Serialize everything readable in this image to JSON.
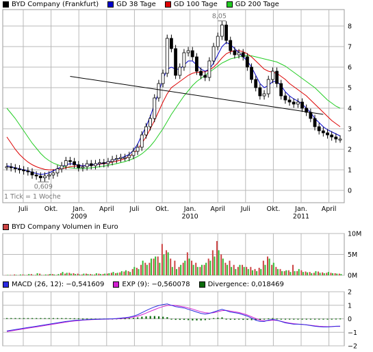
{
  "colors": {
    "price": "#000000",
    "gd38": "#0000cc",
    "gd100": "#dd0000",
    "gd200": "#22cc22",
    "grid": "#b8b8b8",
    "vol_up": "#33bb33",
    "vol_down": "#cc4444",
    "macd": "#2a2ae0",
    "exp": "#d020d0",
    "divergence": "#0a6a0a"
  },
  "price_panel": {
    "legend": [
      {
        "label": "BYD Company (Frankfurt)",
        "color": "#000000"
      },
      {
        "label": "GD 38 Tage",
        "color": "#0000cc"
      },
      {
        "label": "GD 100 Tage",
        "color": "#dd0000"
      },
      {
        "label": "GD 200 Tage",
        "color": "#22cc22"
      }
    ],
    "footnote": "1 Tick = 1 Woche",
    "high_label": "8,05",
    "low_label": "0,609"
  },
  "volume_panel": {
    "legend": [
      {
        "label": "BYD Company Volumen in Euro",
        "color": "#cc4444"
      }
    ]
  },
  "macd_panel": {
    "legend": [
      {
        "label": "MACD (26, 12): −0,541609",
        "color": "#2a2ae0"
      },
      {
        "label": "EXP (9): −0,560078",
        "color": "#d020d0"
      },
      {
        "label": "Divergence: 0,018469",
        "color": "#0a6a0a"
      }
    ]
  },
  "chart_data": [
    {
      "type": "line",
      "title": "BYD Company (Frankfurt)",
      "x_ticks": [
        "Juli",
        "Okt.",
        "Jan.",
        "April",
        "Juli",
        "Okt.",
        "Jan.",
        "April",
        "Juli",
        "Okt.",
        "Jan.",
        "April"
      ],
      "x_year_labels": [
        {
          "tick": "Jan.",
          "year": "2009"
        },
        {
          "tick": "Jan.",
          "year": "2010"
        },
        {
          "tick": "Jan.",
          "year": "2011"
        }
      ],
      "y_ticks": [
        "0",
        "1",
        "2",
        "3",
        "4",
        "5",
        "6",
        "7",
        "8"
      ],
      "ylim": [
        -0.6,
        8.8
      ],
      "grid": true,
      "series": [
        {
          "name": "BYD Company (Frankfurt)",
          "values": [
            1.15,
            1.1,
            1.05,
            1.0,
            0.95,
            0.9,
            0.75,
            0.7,
            0.61,
            0.7,
            0.75,
            0.85,
            1.05,
            1.2,
            1.45,
            1.4,
            1.25,
            1.1,
            1.15,
            1.3,
            1.2,
            1.3,
            1.35,
            1.3,
            1.4,
            1.5,
            1.55,
            1.6,
            1.6,
            1.7,
            1.9,
            2.1,
            2.7,
            3.1,
            3.5,
            4.5,
            5.2,
            5.7,
            7.4,
            6.9,
            5.6,
            6.0,
            6.7,
            6.8,
            6.5,
            5.8,
            5.6,
            5.5,
            6.3,
            7.0,
            7.5,
            8.05,
            7.3,
            6.8,
            6.6,
            6.7,
            6.5,
            6.0,
            5.4,
            5.0,
            4.6,
            4.7,
            5.4,
            5.8,
            5.2,
            4.6,
            4.4,
            4.3,
            4.2,
            4.3,
            4.0,
            3.8,
            3.5,
            3.1,
            2.9,
            2.8,
            2.7,
            2.6,
            2.5,
            2.5
          ]
        },
        {
          "name": "GD 38 Tage",
          "values": [
            1.2,
            1.15,
            1.1,
            1.05,
            1.0,
            0.95,
            0.88,
            0.82,
            0.78,
            0.8,
            0.85,
            0.95,
            1.05,
            1.15,
            1.25,
            1.3,
            1.28,
            1.22,
            1.2,
            1.22,
            1.24,
            1.26,
            1.3,
            1.33,
            1.38,
            1.45,
            1.52,
            1.58,
            1.65,
            1.75,
            1.95,
            2.25,
            2.7,
            3.1,
            3.6,
            4.2,
            4.8,
            5.4,
            5.9,
            6.0,
            5.9,
            5.9,
            6.1,
            6.3,
            6.3,
            6.1,
            5.9,
            5.8,
            5.9,
            6.2,
            6.6,
            7.0,
            7.2,
            7.1,
            6.9,
            6.7,
            6.5,
            6.3,
            6.0,
            5.6,
            5.2,
            5.0,
            5.1,
            5.3,
            5.3,
            5.1,
            4.8,
            4.6,
            4.45,
            4.35,
            4.2,
            4.0,
            3.8,
            3.5,
            3.3,
            3.1,
            2.95,
            2.85,
            2.75,
            2.65
          ]
        },
        {
          "name": "GD 100 Tage",
          "values": [
            2.6,
            2.3,
            2.0,
            1.75,
            1.55,
            1.38,
            1.25,
            1.15,
            1.08,
            1.02,
            1.0,
            1.0,
            1.02,
            1.05,
            1.1,
            1.15,
            1.18,
            1.2,
            1.21,
            1.22,
            1.23,
            1.25,
            1.28,
            1.3,
            1.34,
            1.38,
            1.42,
            1.48,
            1.55,
            1.65,
            1.8,
            2.0,
            2.3,
            2.6,
            3.0,
            3.4,
            3.85,
            4.3,
            4.7,
            5.0,
            5.15,
            5.3,
            5.45,
            5.6,
            5.7,
            5.75,
            5.75,
            5.78,
            5.85,
            6.0,
            6.2,
            6.45,
            6.65,
            6.75,
            6.8,
            6.8,
            6.75,
            6.65,
            6.5,
            6.3,
            6.1,
            5.9,
            5.8,
            5.75,
            5.7,
            5.55,
            5.4,
            5.2,
            5.05,
            4.9,
            4.75,
            4.6,
            4.4,
            4.2,
            4.0,
            3.8,
            3.6,
            3.4,
            3.25,
            3.1
          ]
        },
        {
          "name": "GD 200 Tage",
          "values": [
            4.0,
            3.75,
            3.5,
            3.2,
            2.9,
            2.6,
            2.3,
            2.05,
            1.8,
            1.6,
            1.45,
            1.33,
            1.25,
            1.18,
            1.13,
            1.1,
            1.08,
            1.07,
            1.07,
            1.08,
            1.1,
            1.12,
            1.15,
            1.18,
            1.22,
            1.26,
            1.3,
            1.35,
            1.4,
            1.47,
            1.55,
            1.65,
            1.78,
            1.95,
            2.15,
            2.4,
            2.7,
            3.0,
            3.35,
            3.7,
            4.0,
            4.3,
            4.6,
            4.85,
            5.1,
            5.3,
            5.45,
            5.6,
            5.75,
            5.9,
            6.05,
            6.2,
            6.3,
            6.4,
            6.45,
            6.5,
            6.55,
            6.55,
            6.55,
            6.5,
            6.45,
            6.4,
            6.35,
            6.3,
            6.25,
            6.15,
            6.05,
            5.9,
            5.75,
            5.6,
            5.45,
            5.3,
            5.15,
            5.0,
            4.8,
            4.6,
            4.4,
            4.25,
            4.1,
            4.0
          ]
        }
      ],
      "trendline": {
        "from": [
          15,
          5.55
        ],
        "to": [
          75,
          3.7
        ]
      },
      "annotations": [
        {
          "text": "8,05",
          "at_index": 51
        },
        {
          "text": "0,609",
          "at_index": 8
        }
      ]
    },
    {
      "type": "bar",
      "title": "BYD Company Volumen in Euro",
      "y_ticks": [
        "0M",
        "5M",
        "10M"
      ],
      "ylim": [
        0,
        10
      ],
      "grid": true,
      "series": [
        {
          "name": "up",
          "values": [
            0.1,
            0.05,
            0.1,
            0.2,
            0.1,
            0.3,
            0.1,
            0.5,
            0.1,
            0.2,
            0.3,
            0.2,
            0.3,
            0.8,
            0.6,
            0.4,
            0.3,
            0.2,
            0.4,
            0.3,
            0.2,
            0.5,
            0.3,
            0.4,
            0.5,
            0.8,
            0.6,
            1.0,
            1.2,
            0.8,
            2.0,
            1.5,
            3.5,
            2.5,
            4.0,
            4.5,
            3.0,
            5.0,
            5.5,
            2.0,
            1.5,
            2.5,
            3.5,
            4.0,
            2.5,
            2.0,
            2.5,
            3.0,
            3.5,
            4.5,
            6.0,
            4.0,
            2.5,
            2.0,
            1.5,
            2.5,
            2.0,
            1.5,
            1.2,
            1.0,
            1.5,
            2.5,
            4.0,
            3.0,
            1.5,
            1.0,
            1.2,
            0.8,
            1.0,
            1.5,
            0.8,
            0.7,
            0.5,
            1.0,
            0.6,
            0.5,
            0.8,
            0.5,
            0.4,
            0.3
          ]
        },
        {
          "name": "down",
          "values": [
            0.05,
            0.1,
            0.2,
            0.05,
            0.2,
            0.1,
            0.3,
            0.1,
            0.4,
            0.1,
            0.2,
            0.3,
            0.1,
            0.5,
            0.4,
            0.6,
            0.5,
            0.4,
            0.2,
            0.4,
            0.3,
            0.2,
            0.4,
            0.3,
            0.4,
            0.6,
            0.5,
            0.7,
            0.9,
            1.0,
            1.5,
            1.8,
            2.5,
            3.0,
            3.0,
            4.0,
            4.5,
            7.5,
            6.0,
            4.0,
            3.5,
            2.0,
            3.0,
            5.5,
            3.5,
            3.0,
            2.0,
            2.5,
            4.0,
            6.0,
            8.2,
            5.0,
            3.0,
            3.5,
            2.5,
            2.0,
            2.5,
            2.0,
            2.0,
            1.5,
            1.8,
            3.5,
            4.5,
            2.5,
            2.0,
            1.5,
            1.0,
            1.2,
            2.5,
            1.0,
            1.2,
            0.9,
            0.8,
            0.6,
            0.9,
            0.7,
            0.6,
            0.6,
            0.5,
            0.4
          ]
        }
      ]
    },
    {
      "type": "line",
      "title": "MACD (26, 12)",
      "y_ticks": [
        "−2",
        "−1",
        "0",
        "1",
        "2"
      ],
      "ylim": [
        -2,
        2
      ],
      "grid": true,
      "series": [
        {
          "name": "MACD (26, 12)",
          "values": [
            -0.9,
            -0.85,
            -0.8,
            -0.75,
            -0.7,
            -0.65,
            -0.6,
            -0.55,
            -0.5,
            -0.45,
            -0.4,
            -0.35,
            -0.3,
            -0.25,
            -0.2,
            -0.16,
            -0.12,
            -0.1,
            -0.08,
            -0.06,
            -0.05,
            -0.04,
            -0.03,
            -0.02,
            -0.01,
            0.0,
            0.02,
            0.05,
            0.08,
            0.12,
            0.2,
            0.3,
            0.45,
            0.6,
            0.75,
            0.88,
            0.98,
            1.05,
            1.1,
            1.0,
            0.9,
            0.85,
            0.8,
            0.7,
            0.6,
            0.5,
            0.4,
            0.35,
            0.4,
            0.5,
            0.6,
            0.7,
            0.6,
            0.5,
            0.45,
            0.4,
            0.3,
            0.2,
            0.05,
            -0.1,
            -0.2,
            -0.2,
            -0.1,
            -0.05,
            -0.1,
            -0.2,
            -0.3,
            -0.35,
            -0.4,
            -0.4,
            -0.42,
            -0.45,
            -0.5,
            -0.55,
            -0.58,
            -0.6,
            -0.6,
            -0.58,
            -0.55,
            -0.54
          ]
        },
        {
          "name": "EXP (9)",
          "values": [
            -0.95,
            -0.9,
            -0.85,
            -0.8,
            -0.75,
            -0.7,
            -0.65,
            -0.6,
            -0.55,
            -0.5,
            -0.45,
            -0.4,
            -0.35,
            -0.3,
            -0.25,
            -0.2,
            -0.16,
            -0.13,
            -0.1,
            -0.08,
            -0.06,
            -0.05,
            -0.04,
            -0.03,
            -0.02,
            -0.01,
            0.0,
            0.02,
            0.05,
            0.08,
            0.13,
            0.2,
            0.3,
            0.42,
            0.55,
            0.68,
            0.8,
            0.9,
            0.98,
            1.0,
            0.98,
            0.93,
            0.88,
            0.8,
            0.72,
            0.62,
            0.52,
            0.45,
            0.42,
            0.45,
            0.52,
            0.6,
            0.62,
            0.57,
            0.52,
            0.46,
            0.38,
            0.28,
            0.15,
            0.02,
            -0.1,
            -0.15,
            -0.13,
            -0.1,
            -0.12,
            -0.18,
            -0.26,
            -0.32,
            -0.36,
            -0.39,
            -0.41,
            -0.44,
            -0.48,
            -0.52,
            -0.55,
            -0.57,
            -0.58,
            -0.57,
            -0.56,
            -0.56
          ]
        },
        {
          "name": "Divergence",
          "values": [
            0.05,
            0.05,
            0.05,
            0.05,
            0.05,
            0.05,
            0.05,
            0.05,
            0.05,
            0.05,
            0.05,
            0.05,
            0.05,
            0.05,
            0.05,
            0.04,
            0.04,
            0.03,
            0.02,
            0.02,
            0.01,
            0.01,
            0.01,
            0.01,
            0.01,
            0.01,
            0.02,
            0.03,
            0.03,
            0.04,
            0.07,
            0.1,
            0.15,
            0.18,
            0.2,
            0.2,
            0.18,
            0.15,
            0.12,
            0.0,
            -0.08,
            -0.08,
            -0.08,
            -0.1,
            -0.12,
            -0.12,
            -0.12,
            -0.1,
            -0.02,
            0.05,
            0.08,
            0.1,
            -0.02,
            -0.07,
            -0.07,
            -0.06,
            -0.08,
            -0.08,
            -0.1,
            -0.12,
            -0.1,
            -0.05,
            0.03,
            0.05,
            0.02,
            -0.02,
            -0.04,
            -0.03,
            -0.04,
            -0.01,
            -0.01,
            -0.01,
            -0.02,
            -0.03,
            -0.03,
            -0.03,
            -0.02,
            -0.01,
            0.01,
            0.02
          ]
        }
      ]
    }
  ]
}
